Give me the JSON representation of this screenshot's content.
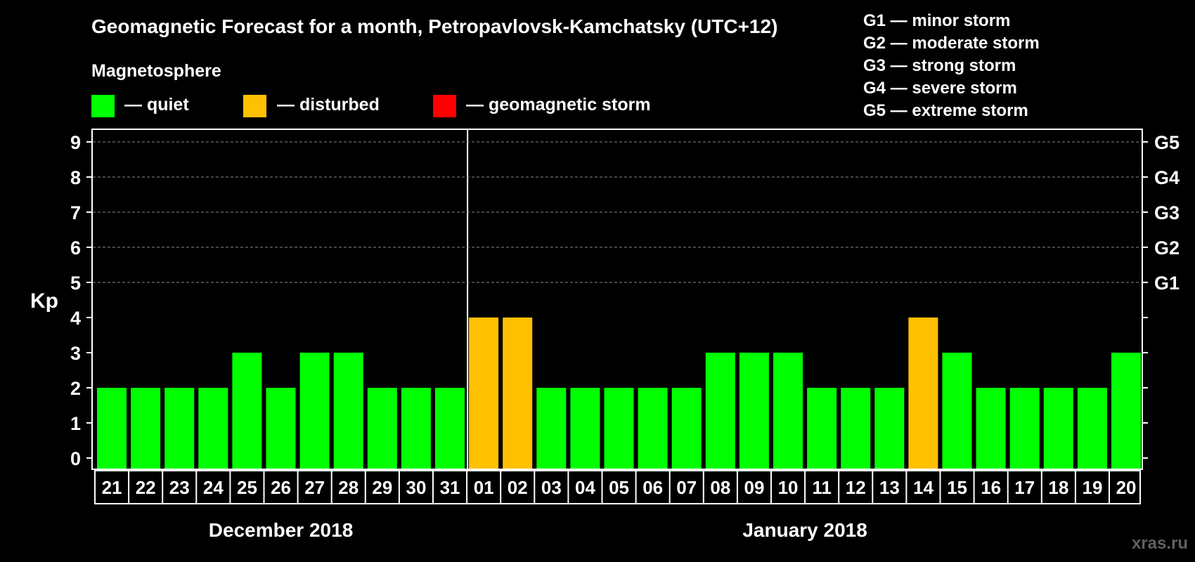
{
  "chart_data": {
    "type": "bar",
    "title": "Geomagnetic Forecast for a month, Petropavlovsk-Kamchatsky (UTC+12)",
    "legend": {
      "heading": "Magnetosphere",
      "entries": [
        {
          "label": "— quiet",
          "color": "#00ff00"
        },
        {
          "label": "— disturbed",
          "color": "#ffc000"
        },
        {
          "label": "— geomagnetic storm",
          "color": "#ff0000"
        }
      ]
    },
    "storm_scale": [
      "G1 — minor storm",
      "G2 — moderate storm",
      "G3 — strong storm",
      "G4 — severe storm",
      "G5 — extreme storm"
    ],
    "ylabel": "Kp",
    "ylim": [
      0,
      9
    ],
    "y_ticks": [
      "0",
      "1",
      "2",
      "3",
      "4",
      "5",
      "6",
      "7",
      "8",
      "9"
    ],
    "right_ticks": [
      {
        "kp": 5,
        "label": "G1"
      },
      {
        "kp": 6,
        "label": "G2"
      },
      {
        "kp": 7,
        "label": "G3"
      },
      {
        "kp": 8,
        "label": "G4"
      },
      {
        "kp": 9,
        "label": "G5"
      }
    ],
    "grid": "dashed horizontal at Kp 5–9",
    "categories": [
      "21",
      "22",
      "23",
      "24",
      "25",
      "26",
      "27",
      "28",
      "29",
      "30",
      "31",
      "01",
      "02",
      "03",
      "04",
      "05",
      "06",
      "07",
      "08",
      "09",
      "10",
      "11",
      "12",
      "13",
      "14",
      "15",
      "16",
      "17",
      "18",
      "19",
      "20"
    ],
    "values": [
      2,
      2,
      2,
      2,
      3,
      2,
      3,
      3,
      2,
      2,
      2,
      4,
      4,
      2,
      2,
      2,
      2,
      2,
      3,
      3,
      3,
      2,
      2,
      2,
      4,
      3,
      2,
      2,
      2,
      2,
      3
    ],
    "colors": {
      "quiet": "#00ff00",
      "disturbed": "#ffc000",
      "storm": "#ff0000"
    },
    "months": [
      {
        "label": "December 2018",
        "count": 11
      },
      {
        "label": "January 2018",
        "count": 20
      }
    ],
    "watermark": "xras.ru"
  }
}
